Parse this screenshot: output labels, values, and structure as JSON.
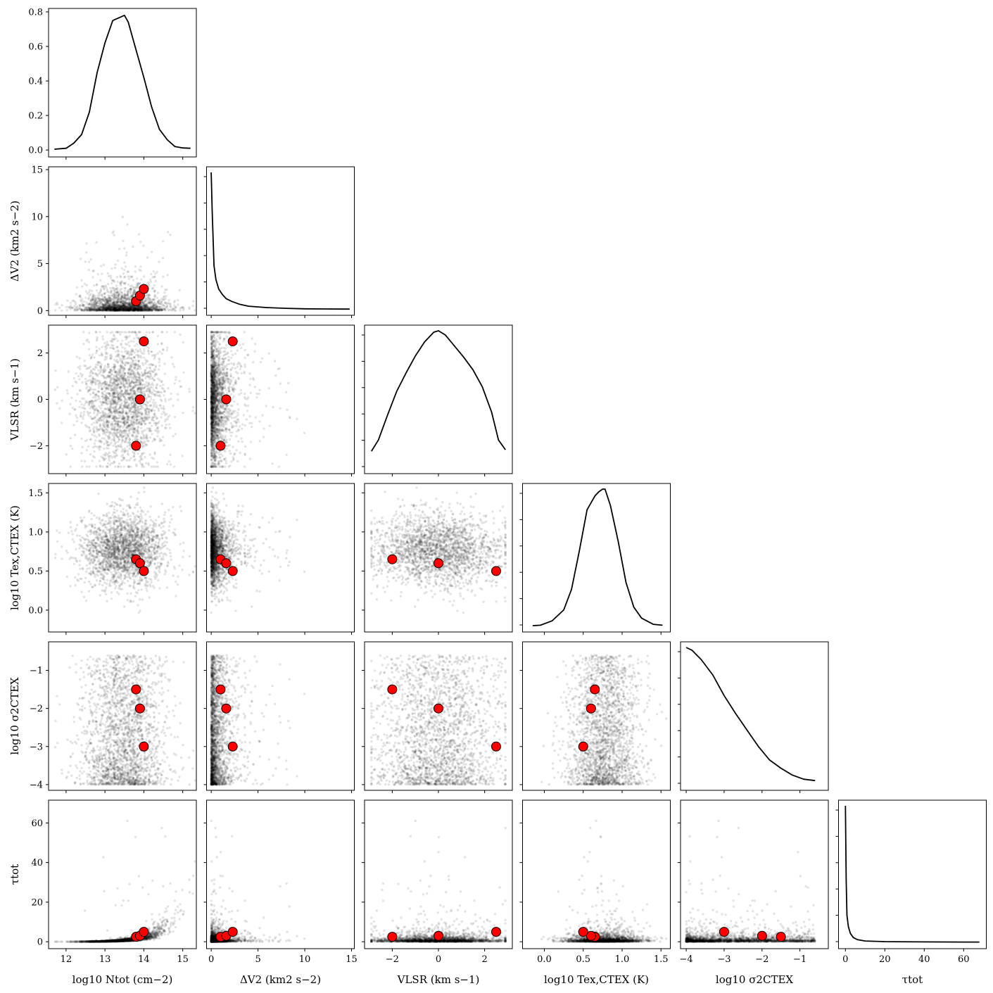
{
  "chart_data": {
    "type": "scatter",
    "subtype": "corner-plot",
    "parameters": [
      {
        "key": "N",
        "label_main": "log",
        "label_sub": "10",
        "label_rest": " N",
        "label_rest_sub": "tot",
        "label_unit": " (cm",
        "label_unit_sup": "−2",
        "label_close": ")"
      },
      {
        "key": "dV",
        "label_main": "ΔV",
        "label_sub": "",
        "label_rest": "",
        "label_rest_sub": "",
        "label_unit": "",
        "label_unit_sup": "",
        "label_close": ""
      },
      {
        "key": "V",
        "label_main": "V",
        "label_sub": "LSR",
        "label_rest": "",
        "label_rest_sub": "",
        "label_unit": " (km s",
        "label_unit_sup": "−1",
        "label_close": ")"
      },
      {
        "key": "T",
        "label_main": "log",
        "label_sub": "10",
        "label_rest": " T",
        "label_rest_sub": "ex,CTEX",
        "label_unit": " (K)",
        "label_unit_sup": "",
        "label_close": ""
      },
      {
        "key": "S",
        "label_main": "log",
        "label_sub": "10",
        "label_rest": " σ",
        "label_rest_sub": "CTEX",
        "label_unit": "",
        "label_unit_sup": "",
        "label_close": ""
      },
      {
        "key": "tau",
        "label_main": "τ",
        "label_sub": "tot",
        "label_rest": "",
        "label_rest_sub": "",
        "label_unit": "",
        "label_unit_sup": "",
        "label_close": ""
      }
    ],
    "axis_text": {
      "N": "log10 Ntot (cm−2)",
      "dV": "ΔV2 (km2 s−2)",
      "V": "VLSR (km s−1)",
      "T": "log10 Tex,CTEX (K)",
      "S": "log10 σ2CTEX",
      "tau": "τtot"
    },
    "ranges": {
      "N": [
        11.55,
        15.35
      ],
      "dV": [
        -0.5,
        15.3
      ],
      "V": [
        -3.2,
        3.2
      ],
      "T": [
        -0.28,
        1.62
      ],
      "S": [
        -4.15,
        -0.25
      ],
      "tau": [
        -3.5,
        71.5
      ]
    },
    "ticks": {
      "N": [
        "12",
        "13",
        "14",
        "15"
      ],
      "dV": [
        "0",
        "5",
        "10",
        "15"
      ],
      "V": [
        "−2",
        "0",
        "2"
      ],
      "T": [
        "0.0",
        "0.5",
        "1.0",
        "1.5"
      ],
      "S": [
        "−4",
        "−3",
        "−2",
        "−1"
      ],
      "tau": [
        "0",
        "20",
        "40",
        "60"
      ]
    },
    "diag_first_yticks": [
      "0.0",
      "0.2",
      "0.4",
      "0.6",
      "0.8"
    ],
    "diag_first_ylim": [
      -0.04,
      0.82
    ],
    "truths": {
      "N": [
        13.8,
        13.9,
        14.0
      ],
      "dV": [
        1.0,
        1.6,
        2.3
      ],
      "V": [
        -2.0,
        0.0,
        2.5
      ],
      "T": [
        0.65,
        0.6,
        0.5
      ],
      "S": [
        -1.5,
        -2.0,
        -3.0
      ],
      "tau": [
        2.5,
        3.0,
        5.0
      ]
    },
    "posterior_marginals": {
      "N": {
        "x": [
          11.7,
          12.0,
          12.2,
          12.4,
          12.6,
          12.8,
          13.0,
          13.2,
          13.4,
          13.5,
          13.6,
          13.8,
          14.0,
          14.2,
          14.4,
          14.6,
          14.8,
          15.0,
          15.2
        ],
        "y": [
          0.005,
          0.01,
          0.04,
          0.09,
          0.22,
          0.45,
          0.62,
          0.75,
          0.77,
          0.78,
          0.74,
          0.58,
          0.42,
          0.25,
          0.12,
          0.06,
          0.02,
          0.012,
          0.01
        ]
      },
      "dV": {
        "x": [
          0,
          0.1,
          0.3,
          0.5,
          0.8,
          1.2,
          1.6,
          2.2,
          3.0,
          4.0,
          5.0,
          6.0,
          8.0,
          10.0,
          12.0,
          14.0,
          14.8
        ],
        "y": [
          1.0,
          0.72,
          0.32,
          0.22,
          0.15,
          0.11,
          0.08,
          0.06,
          0.04,
          0.025,
          0.02,
          0.015,
          0.01,
          0.006,
          0.005,
          0.004,
          0.004
        ]
      },
      "V": {
        "x": [
          -2.9,
          -2.6,
          -2.2,
          -1.8,
          -1.4,
          -1.0,
          -0.6,
          -0.2,
          0.0,
          0.3,
          0.7,
          1.1,
          1.5,
          1.9,
          2.3,
          2.6,
          2.9
        ],
        "y": [
          0.12,
          0.2,
          0.38,
          0.55,
          0.68,
          0.8,
          0.9,
          0.97,
          0.98,
          0.95,
          0.87,
          0.79,
          0.7,
          0.58,
          0.4,
          0.2,
          0.13
        ]
      },
      "T": {
        "x": [
          -0.15,
          -0.05,
          0.1,
          0.25,
          0.35,
          0.45,
          0.55,
          0.65,
          0.7,
          0.75,
          0.78,
          0.85,
          0.95,
          1.05,
          1.15,
          1.25,
          1.4,
          1.52
        ],
        "y": [
          0.005,
          0.008,
          0.04,
          0.12,
          0.27,
          0.55,
          0.85,
          0.95,
          0.98,
          1.0,
          1.0,
          0.88,
          0.62,
          0.32,
          0.14,
          0.06,
          0.015,
          0.008
        ]
      },
      "S": {
        "x": [
          -4.0,
          -3.85,
          -3.6,
          -3.3,
          -3.0,
          -2.7,
          -2.4,
          -2.1,
          -1.8,
          -1.5,
          -1.2,
          -0.9,
          -0.6
        ],
        "y": [
          1.0,
          0.98,
          0.91,
          0.8,
          0.65,
          0.52,
          0.4,
          0.28,
          0.18,
          0.12,
          0.07,
          0.04,
          0.03
        ]
      },
      "tau": {
        "x": [
          0,
          0.4,
          0.8,
          1.5,
          2.5,
          4.0,
          6.0,
          10.0,
          20.0,
          40.0,
          60.0,
          68.0
        ],
        "y": [
          1.0,
          0.45,
          0.2,
          0.12,
          0.07,
          0.04,
          0.025,
          0.015,
          0.01,
          0.008,
          0.007,
          0.007
        ]
      }
    }
  }
}
